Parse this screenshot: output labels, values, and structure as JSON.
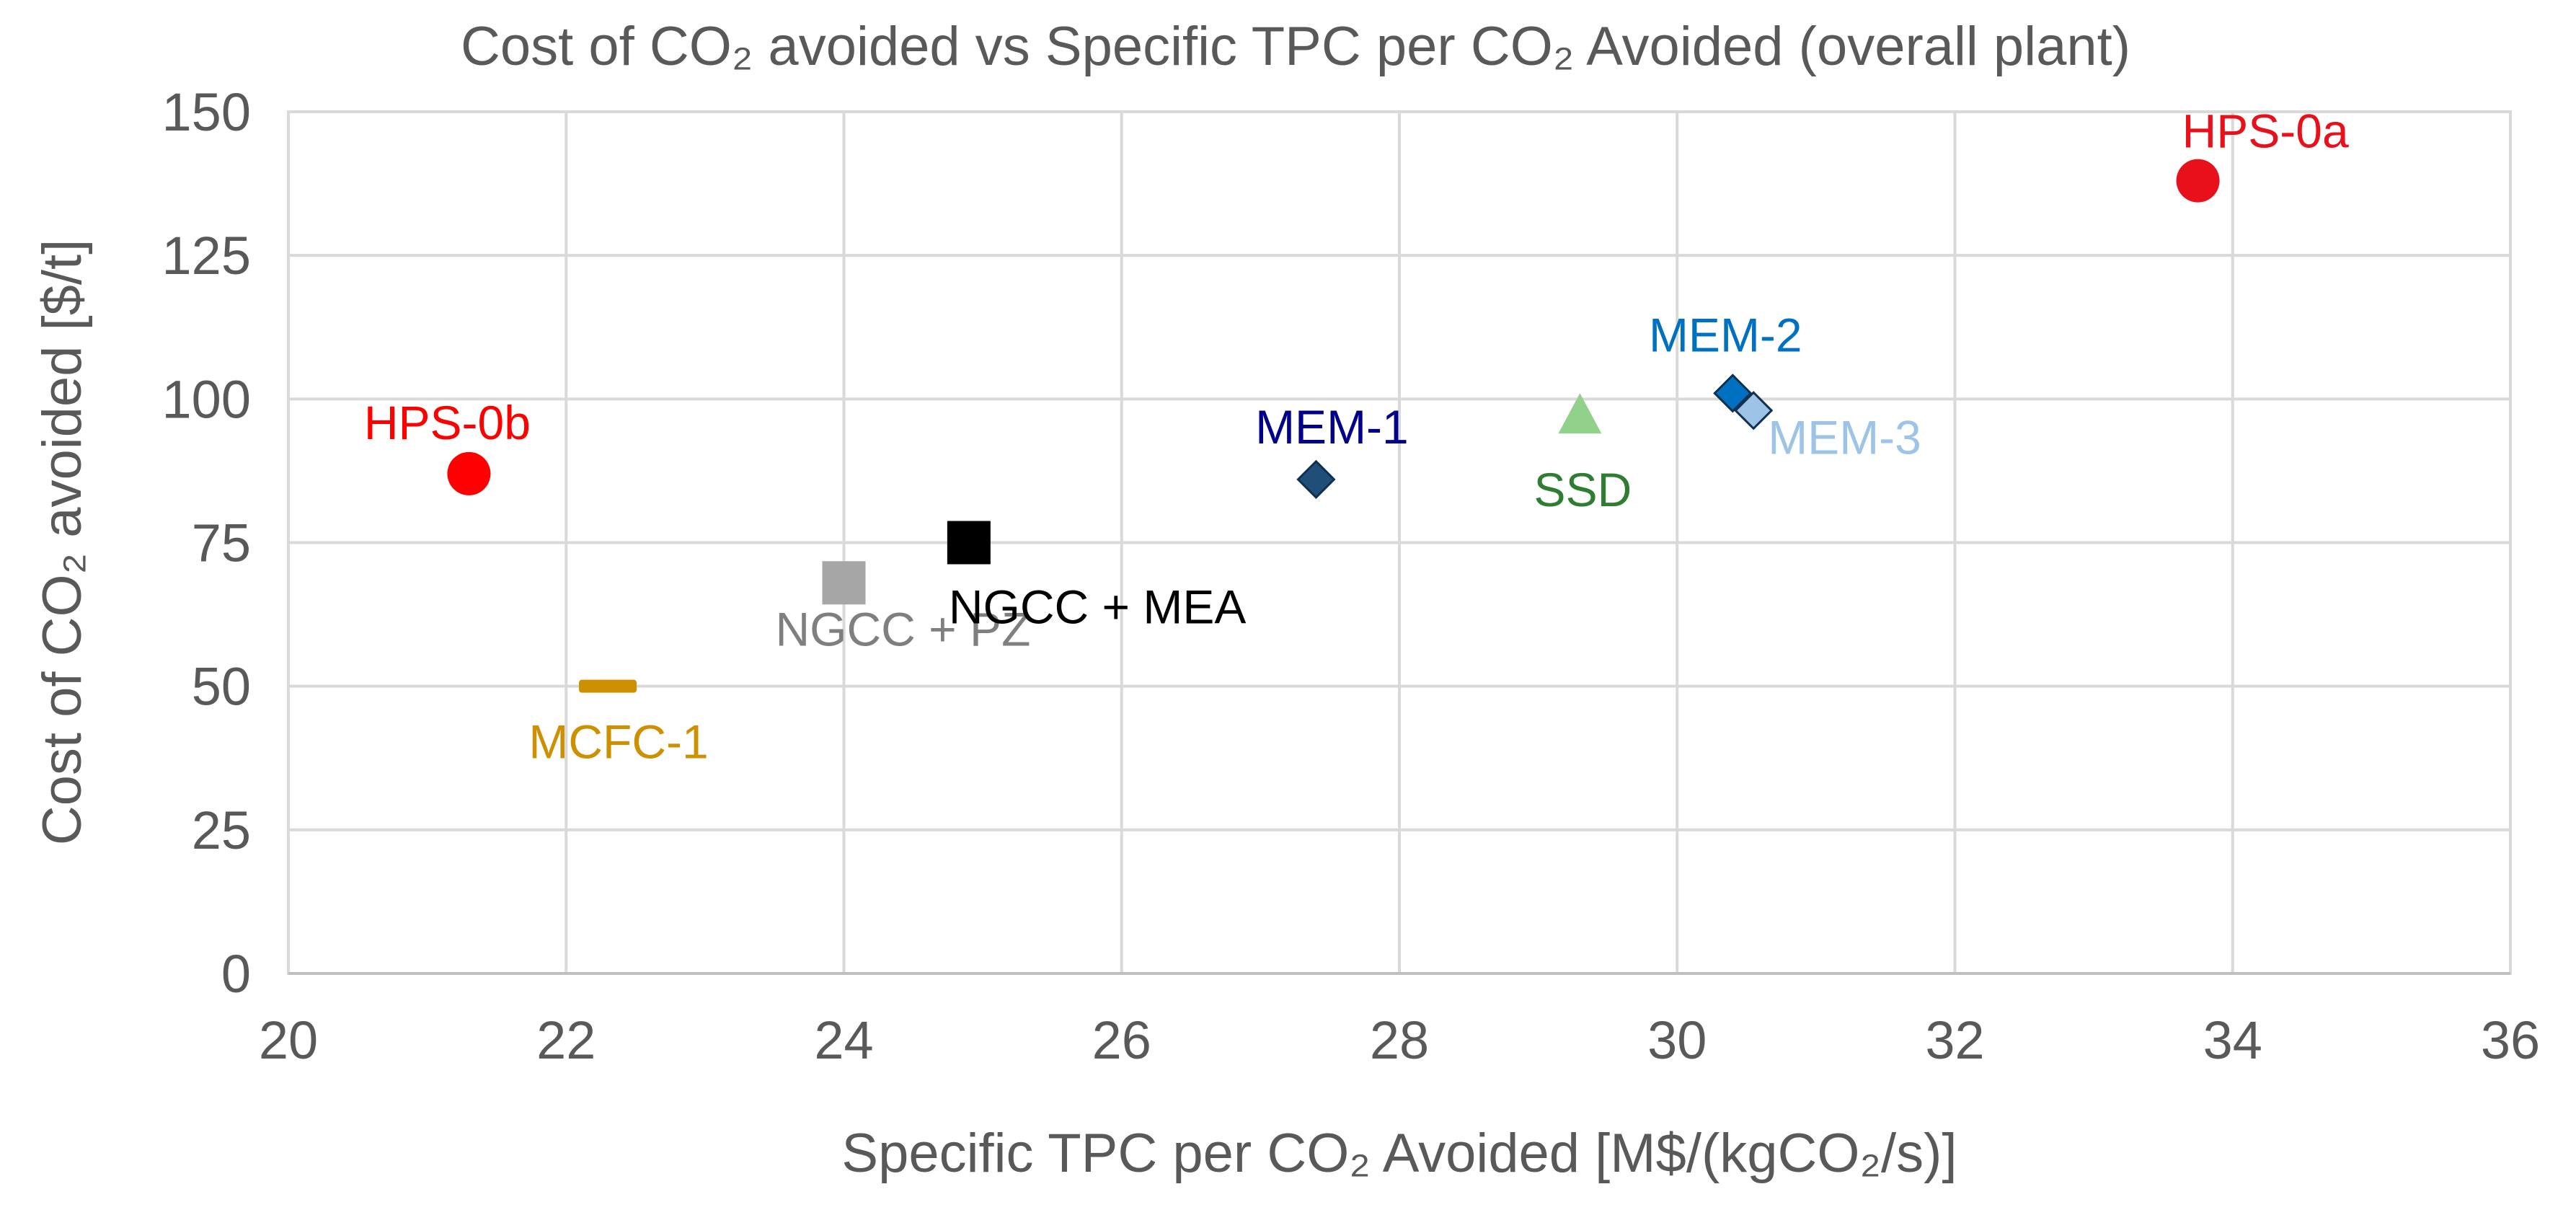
{
  "chart_data": {
    "type": "scatter",
    "title": "Cost of CO₂ avoided vs Specific TPC per CO₂ Avoided (overall plant)",
    "xlabel": "Specific TPC per CO₂ Avoided [M$/(kgCO₂/s)]",
    "ylabel": "Cost of CO₂ avoided [$/t]",
    "xlim": [
      20,
      36
    ],
    "ylim": [
      0,
      150
    ],
    "xticks": [
      20,
      22,
      24,
      26,
      28,
      30,
      32,
      34,
      36
    ],
    "yticks": [
      0,
      25,
      50,
      75,
      100,
      125,
      150
    ],
    "grid": true,
    "legend": "none",
    "series": [
      {
        "name": "HPS-0a",
        "x": 33.75,
        "y": 138,
        "marker": "circle",
        "color": "#e8101a",
        "label_color": "#e8101a"
      },
      {
        "name": "HPS-0b",
        "x": 21.3,
        "y": 87,
        "marker": "circle",
        "color": "#ff0000",
        "label_color": "#ff0000"
      },
      {
        "name": "MCFC-1",
        "x": 22.3,
        "y": 50,
        "marker": "dash",
        "color": "#cc9000",
        "label_color": "#cc9000"
      },
      {
        "name": "NGCC + PZ",
        "x": 24.0,
        "y": 68,
        "marker": "square",
        "color": "#a6a6a6",
        "label_color": "#7f7f7f"
      },
      {
        "name": "NGCC + MEA",
        "x": 24.9,
        "y": 75,
        "marker": "square",
        "color": "#000000",
        "label_color": "#000000"
      },
      {
        "name": "MEM-1",
        "x": 27.4,
        "y": 86,
        "marker": "diamond",
        "color": "#1f4e79",
        "label_color": "#00008b"
      },
      {
        "name": "SSD",
        "x": 29.3,
        "y": 97,
        "marker": "triangle",
        "color": "#92d18c",
        "label_color": "#2e7d32"
      },
      {
        "name": "MEM-2",
        "x": 30.4,
        "y": 101,
        "marker": "diamond",
        "color": "#0070c0",
        "label_color": "#0070c0"
      },
      {
        "name": "MEM-3",
        "x": 30.55,
        "y": 98,
        "marker": "diamond",
        "color": "#9dc3e6",
        "label_color": "#9dc3e6"
      }
    ]
  }
}
